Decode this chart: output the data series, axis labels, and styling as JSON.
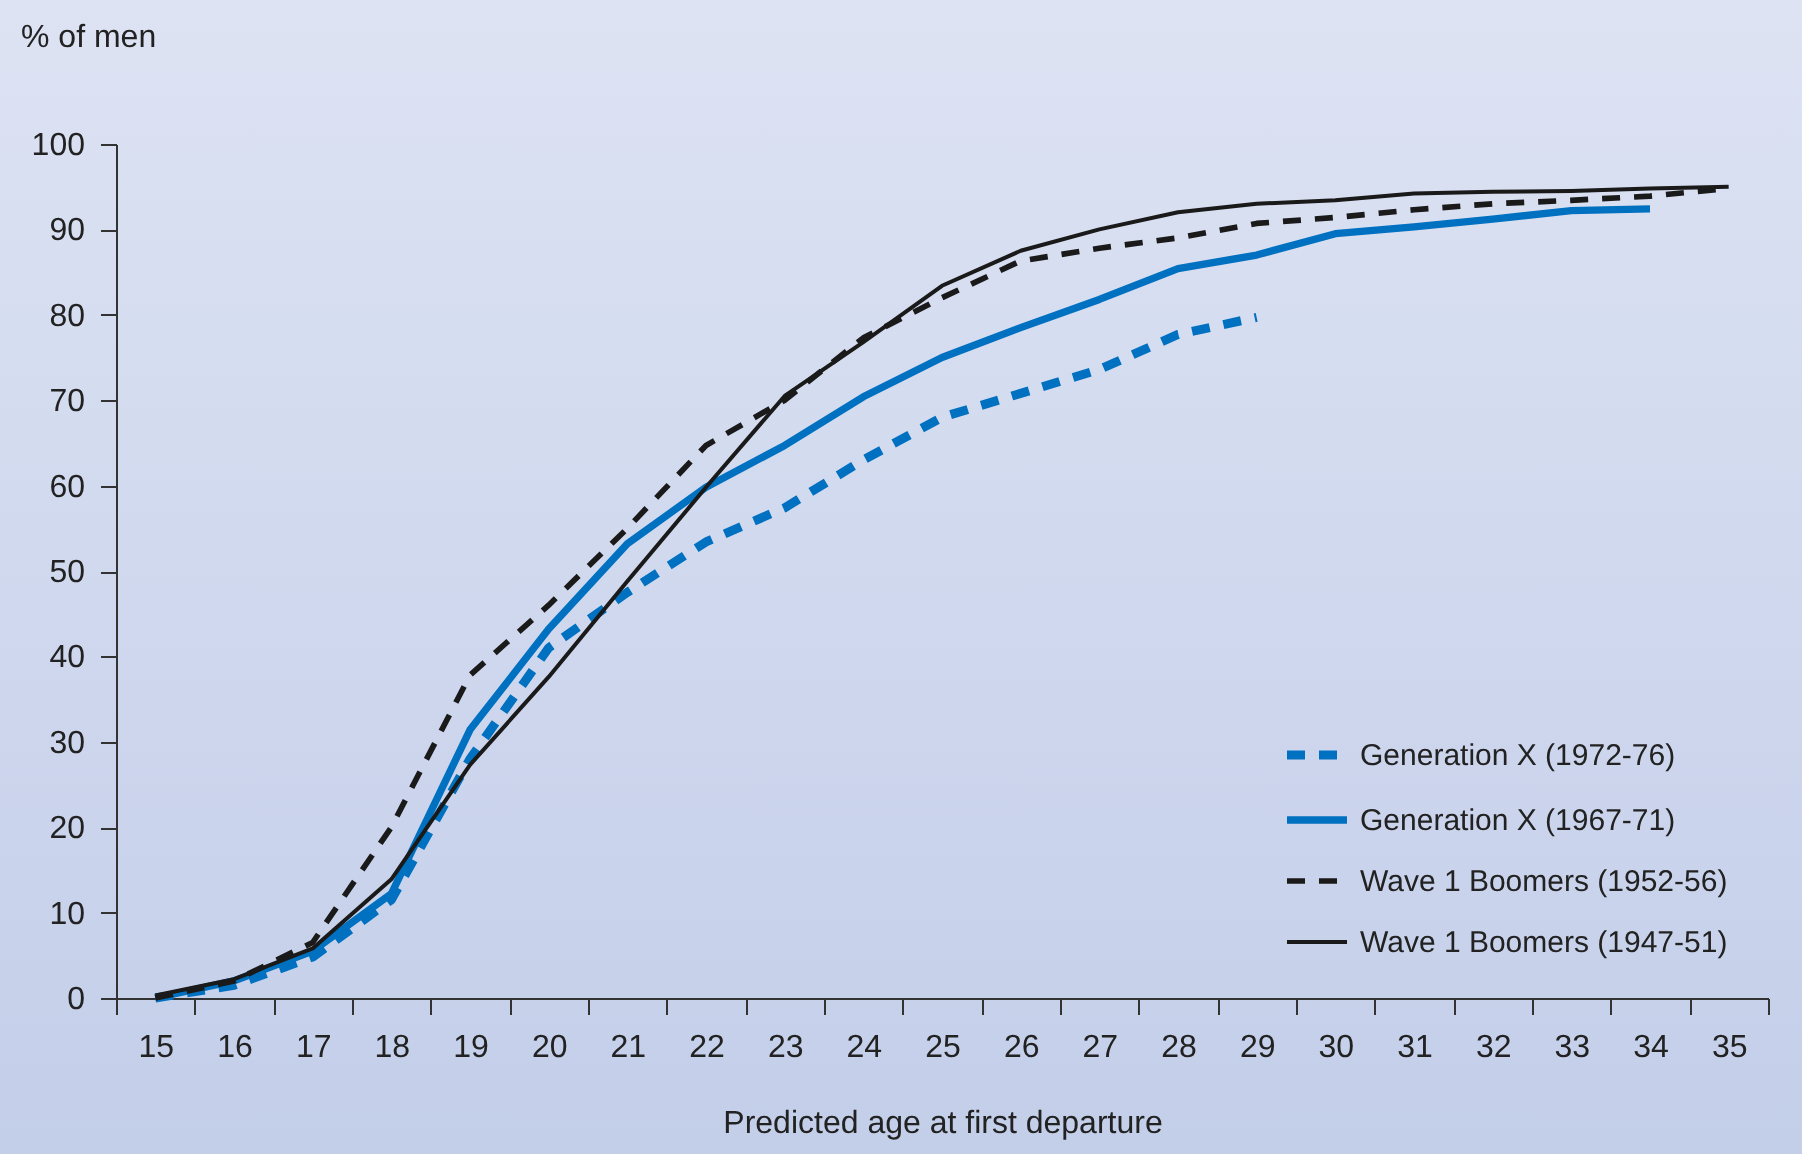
{
  "chart_data": {
    "type": "line",
    "xlabel": "Predicted age at first departure",
    "ylabel": "% of men",
    "categories": [
      "15",
      "16",
      "17",
      "18",
      "19",
      "20",
      "21",
      "22",
      "23",
      "24",
      "25",
      "26",
      "27",
      "28",
      "29",
      "30",
      "31",
      "32",
      "33",
      "34",
      "35"
    ],
    "ylim": [
      0,
      100
    ],
    "yticks": [
      0,
      10,
      20,
      30,
      40,
      50,
      60,
      70,
      80,
      90,
      100
    ],
    "grid": false,
    "legend": "bottom right",
    "marker": "none",
    "series": [
      {
        "name": "Generation X (1972-76)",
        "color": "#0070c0",
        "line_style": "dashed",
        "values": [
          0,
          1.5,
          4.8,
          11.5,
          28,
          41,
          47.5,
          53.4,
          57.4,
          63,
          68,
          70.8,
          73.6,
          77.7,
          79.7,
          null,
          null,
          null,
          null,
          null,
          null
        ]
      },
      {
        "name": "Generation X (1967-71)",
        "color": "#0070c0",
        "line_style": "solid",
        "values": [
          0,
          2,
          5.5,
          12.2,
          31.4,
          43.2,
          53.2,
          59.8,
          64.7,
          70.4,
          75,
          78.5,
          81.8,
          85.4,
          87,
          89.5,
          90.3,
          91.2,
          92.2,
          92.4,
          null
        ]
      },
      {
        "name": "Wave 1 Boomers (1952-56)",
        "color": "#1a1a1a",
        "line_style": "dashed",
        "values": [
          0,
          2,
          6.5,
          20,
          37.8,
          46,
          55,
          64.7,
          70,
          77.3,
          82,
          86.3,
          87.8,
          89,
          90.7,
          91.4,
          92.3,
          93,
          93.4,
          93.9,
          94.8
        ]
      },
      {
        "name": "Wave 1 Boomers (1947-51)",
        "color": "#1a1a1a",
        "line_style": "solid",
        "values": [
          0.3,
          2.2,
          5.8,
          13.9,
          27.3,
          37.6,
          48.8,
          59.8,
          70.5,
          76.8,
          83.4,
          87.5,
          90,
          92,
          93,
          93.4,
          94.2,
          94.4,
          94.5,
          94.8,
          95
        ]
      }
    ]
  }
}
